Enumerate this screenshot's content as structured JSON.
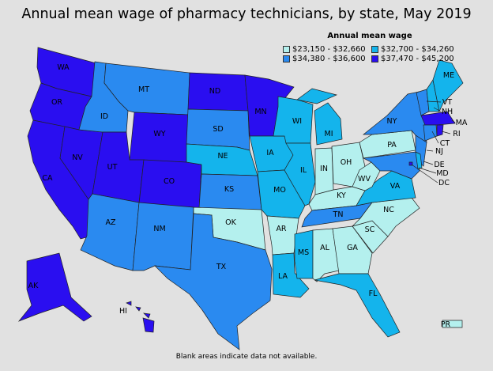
{
  "title": "Annual mean wage of pharmacy technicians, by state, May 2019",
  "legend": {
    "title": "Annual mean wage",
    "bins": [
      {
        "label": "$23,150 - $32,660",
        "color": "#b4f0ee"
      },
      {
        "label": "$32,700 - $34,260",
        "color": "#14b4ec"
      },
      {
        "label": "$34,380 - $36,600",
        "color": "#2a8af0"
      },
      {
        "label": "$37,470 - $45,200",
        "color": "#2a0ef0"
      }
    ]
  },
  "footnote": "Blank areas indicate data not available.",
  "states": [
    {
      "abbr": "WA",
      "bin": 3
    },
    {
      "abbr": "OR",
      "bin": 3
    },
    {
      "abbr": "CA",
      "bin": 3
    },
    {
      "abbr": "NV",
      "bin": 3
    },
    {
      "abbr": "ID",
      "bin": 2
    },
    {
      "abbr": "MT",
      "bin": 2
    },
    {
      "abbr": "WY",
      "bin": 3
    },
    {
      "abbr": "UT",
      "bin": 3
    },
    {
      "abbr": "CO",
      "bin": 3
    },
    {
      "abbr": "AZ",
      "bin": 2
    },
    {
      "abbr": "NM",
      "bin": 2
    },
    {
      "abbr": "ND",
      "bin": 3
    },
    {
      "abbr": "SD",
      "bin": 2
    },
    {
      "abbr": "NE",
      "bin": 1
    },
    {
      "abbr": "KS",
      "bin": 2
    },
    {
      "abbr": "OK",
      "bin": 0
    },
    {
      "abbr": "TX",
      "bin": 2
    },
    {
      "abbr": "MN",
      "bin": 3
    },
    {
      "abbr": "IA",
      "bin": 1
    },
    {
      "abbr": "MO",
      "bin": 1
    },
    {
      "abbr": "AR",
      "bin": 0
    },
    {
      "abbr": "LA",
      "bin": 1
    },
    {
      "abbr": "WI",
      "bin": 1
    },
    {
      "abbr": "IL",
      "bin": 1
    },
    {
      "abbr": "MI",
      "bin": 1
    },
    {
      "abbr": "IN",
      "bin": 0
    },
    {
      "abbr": "OH",
      "bin": 0
    },
    {
      "abbr": "KY",
      "bin": 0
    },
    {
      "abbr": "TN",
      "bin": 2
    },
    {
      "abbr": "MS",
      "bin": 1
    },
    {
      "abbr": "AL",
      "bin": 0
    },
    {
      "abbr": "GA",
      "bin": 0
    },
    {
      "abbr": "FL",
      "bin": 1
    },
    {
      "abbr": "SC",
      "bin": 0
    },
    {
      "abbr": "NC",
      "bin": 0
    },
    {
      "abbr": "VA",
      "bin": 1
    },
    {
      "abbr": "WV",
      "bin": 0
    },
    {
      "abbr": "PA",
      "bin": 0
    },
    {
      "abbr": "NY",
      "bin": 2
    },
    {
      "abbr": "NJ",
      "bin": 2
    },
    {
      "abbr": "MD",
      "bin": 2
    },
    {
      "abbr": "DE",
      "bin": 1
    },
    {
      "abbr": "DC",
      "bin": 3
    },
    {
      "abbr": "VT",
      "bin": 2
    },
    {
      "abbr": "NH",
      "bin": 1
    },
    {
      "abbr": "ME",
      "bin": 1
    },
    {
      "abbr": "MA",
      "bin": 3
    },
    {
      "abbr": "CT",
      "bin": 2
    },
    {
      "abbr": "RI",
      "bin": 3
    },
    {
      "abbr": "AK",
      "bin": 3
    },
    {
      "abbr": "HI",
      "bin": 3
    },
    {
      "abbr": "PR",
      "bin": 0
    }
  ]
}
